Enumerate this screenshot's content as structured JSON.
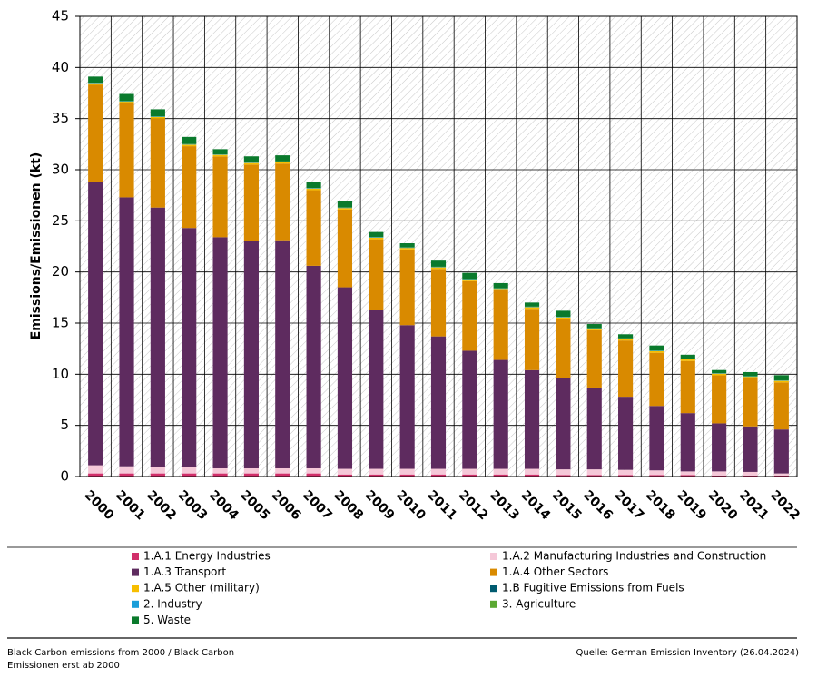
{
  "chart_data": {
    "type": "stacked_bar",
    "y_label": "Emissions/Emissionen (kt)",
    "categories": [
      "2000",
      "2001",
      "2002",
      "2003",
      "2004",
      "2005",
      "2006",
      "2007",
      "2008",
      "2009",
      "2010",
      "2011",
      "2012",
      "2013",
      "2014",
      "2015",
      "2016",
      "2017",
      "2018",
      "2019",
      "2020",
      "2021",
      "2022"
    ],
    "ylim": [
      0,
      45
    ],
    "yticks": [
      0,
      5,
      10,
      15,
      20,
      25,
      30,
      35,
      40,
      45
    ],
    "grid": true,
    "legend": "bottom",
    "series": [
      {
        "name": "1.A.1 Energy Industries",
        "color": "#d12f6a",
        "values": [
          0.3,
          0.3,
          0.3,
          0.3,
          0.3,
          0.3,
          0.3,
          0.3,
          0.2,
          0.2,
          0.2,
          0.2,
          0.2,
          0.2,
          0.2,
          0.15,
          0.15,
          0.15,
          0.15,
          0.15,
          0.1,
          0.1,
          0.1
        ]
      },
      {
        "name": "1.A.2 Manufacturing Industries and Construction",
        "color": "#f5c8d8",
        "values": [
          0.8,
          0.7,
          0.6,
          0.6,
          0.5,
          0.5,
          0.5,
          0.5,
          0.55,
          0.55,
          0.55,
          0.55,
          0.55,
          0.55,
          0.55,
          0.55,
          0.55,
          0.5,
          0.45,
          0.35,
          0.4,
          0.35,
          0.2
        ]
      },
      {
        "name": "1.A.3 Transport",
        "color": "#5e2b5f",
        "values": [
          27.7,
          26.3,
          25.4,
          23.4,
          22.6,
          22.2,
          22.3,
          19.8,
          17.75,
          15.55,
          14.05,
          12.95,
          11.55,
          10.65,
          9.65,
          8.9,
          8.0,
          7.15,
          6.3,
          5.7,
          4.7,
          4.45,
          4.3
        ]
      },
      {
        "name": "1.A.4 Other Sectors",
        "color": "#d98a00",
        "values": [
          9.5,
          9.2,
          8.7,
          8.0,
          7.9,
          7.5,
          7.5,
          7.4,
          7.6,
          6.9,
          7.4,
          6.6,
          6.8,
          6.8,
          6.0,
          5.8,
          5.6,
          5.5,
          5.2,
          5.1,
          4.7,
          4.7,
          4.6
        ]
      },
      {
        "name": "1.A.5 Other (military)",
        "color": "#f7be00",
        "values": [
          0.15,
          0.15,
          0.15,
          0.15,
          0.15,
          0.15,
          0.15,
          0.15,
          0.15,
          0.15,
          0.15,
          0.15,
          0.15,
          0.15,
          0.15,
          0.15,
          0.15,
          0.15,
          0.15,
          0.15,
          0.15,
          0.15,
          0.15
        ]
      },
      {
        "name": "1.B Fugitive Emissions from Fuels",
        "color": "#005b70",
        "values": [
          0.01,
          0.01,
          0.01,
          0.01,
          0.01,
          0.01,
          0.01,
          0.01,
          0.01,
          0.01,
          0.01,
          0.01,
          0.01,
          0.01,
          0.01,
          0.01,
          0.01,
          0.01,
          0.01,
          0.01,
          0.01,
          0.01,
          0.01
        ]
      },
      {
        "name": "2. Industry",
        "color": "#1a9ed9",
        "values": [
          0.03,
          0.03,
          0.03,
          0.03,
          0.03,
          0.03,
          0.03,
          0.03,
          0.03,
          0.03,
          0.03,
          0.03,
          0.03,
          0.03,
          0.03,
          0.03,
          0.03,
          0.03,
          0.03,
          0.03,
          0.03,
          0.03,
          0.03
        ]
      },
      {
        "name": "3. Agriculture",
        "color": "#5aa832",
        "values": [
          0.02,
          0.02,
          0.02,
          0.02,
          0.02,
          0.02,
          0.02,
          0.02,
          0.02,
          0.02,
          0.02,
          0.02,
          0.02,
          0.02,
          0.02,
          0.02,
          0.02,
          0.02,
          0.02,
          0.02,
          0.02,
          0.02,
          0.02
        ]
      },
      {
        "name": "5. Waste",
        "color": "#0a7a2c",
        "values": [
          0.6,
          0.7,
          0.7,
          0.7,
          0.5,
          0.6,
          0.6,
          0.6,
          0.6,
          0.5,
          0.4,
          0.6,
          0.6,
          0.5,
          0.4,
          0.6,
          0.4,
          0.4,
          0.5,
          0.4,
          0.3,
          0.4,
          0.5
        ]
      }
    ],
    "footnote": "Black Carbon emissions from 2000 / Black Carbon Emissionen erst ab 2000",
    "source": "Quelle: German Emission Inventory (26.04.2024)"
  }
}
